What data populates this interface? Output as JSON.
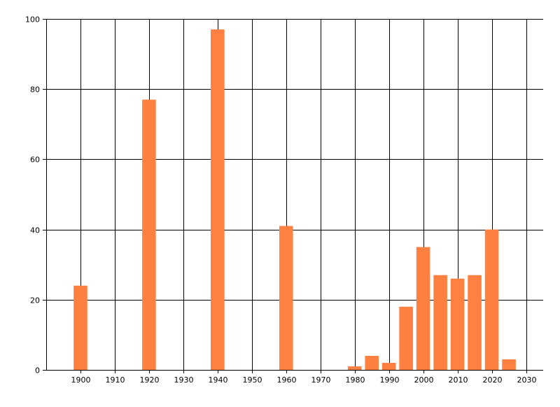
{
  "chart_data": {
    "type": "bar",
    "x": [
      1900,
      1920,
      1940,
      1960,
      1980,
      1985,
      1990,
      1995,
      2000,
      2005,
      2010,
      2015,
      2020,
      2025
    ],
    "values": [
      24,
      77,
      97,
      41,
      1,
      4,
      2,
      18,
      35,
      27,
      26,
      27,
      40,
      3
    ],
    "xlim": [
      1890,
      2035
    ],
    "ylim": [
      0,
      100
    ],
    "x_ticks": [
      1900,
      1910,
      1920,
      1930,
      1940,
      1950,
      1960,
      1970,
      1980,
      1990,
      2000,
      2010,
      2020,
      2030
    ],
    "y_ticks": [
      0,
      20,
      40,
      60,
      80,
      100
    ],
    "grid": true,
    "bar_color": "#ff8040",
    "title": "",
    "xlabel": "",
    "ylabel": ""
  }
}
